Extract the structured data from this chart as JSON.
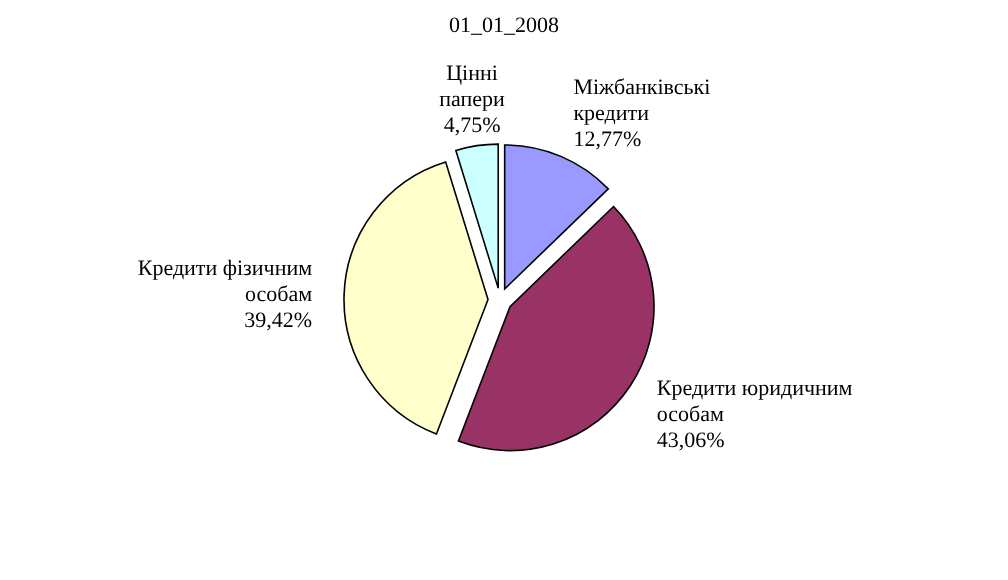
{
  "chart_data": {
    "type": "pie",
    "title": "01_01_2008",
    "categories": [
      "Міжбанківські кредити",
      "Кредити юридичним особам",
      "Кредити фізичним особам",
      "Цінні папери"
    ],
    "values": [
      12.77,
      43.06,
      39.42,
      4.75
    ],
    "value_labels": [
      "12,77%",
      "43,06%",
      "39,42%",
      "4,75%"
    ],
    "colors": [
      "#9999ff",
      "#993366",
      "#ffffcc",
      "#ccffff"
    ]
  }
}
